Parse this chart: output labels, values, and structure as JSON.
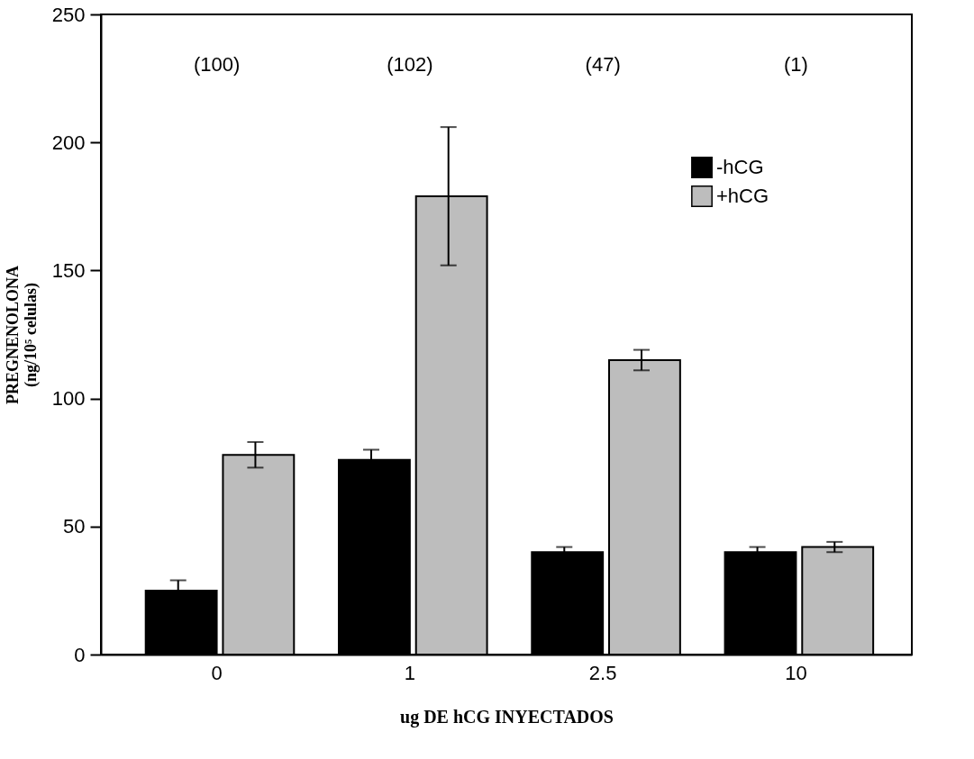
{
  "chart_data": {
    "type": "bar",
    "xlabel": "ug DE hCG INYECTADOS",
    "ylabel": "PREGNENOLONA\n(ng/10⁵ celulas)",
    "categories": [
      "0",
      "1",
      "2.5",
      "10"
    ],
    "series": [
      {
        "name": "-hCG",
        "color": "#000000",
        "values": [
          25,
          76,
          40,
          40
        ],
        "errors": [
          4,
          4,
          2,
          2
        ]
      },
      {
        "name": "+hCG",
        "color": "#bdbdbd",
        "values": [
          78,
          179,
          115,
          42
        ],
        "errors": [
          5,
          27,
          4,
          2
        ]
      }
    ],
    "ylim": [
      0,
      250
    ],
    "yticks": [
      0,
      50,
      100,
      150,
      200,
      250
    ],
    "grid": false,
    "legend": "top right",
    "annotations": [
      "(100)",
      "(102)",
      "(47)",
      "(1)"
    ]
  }
}
